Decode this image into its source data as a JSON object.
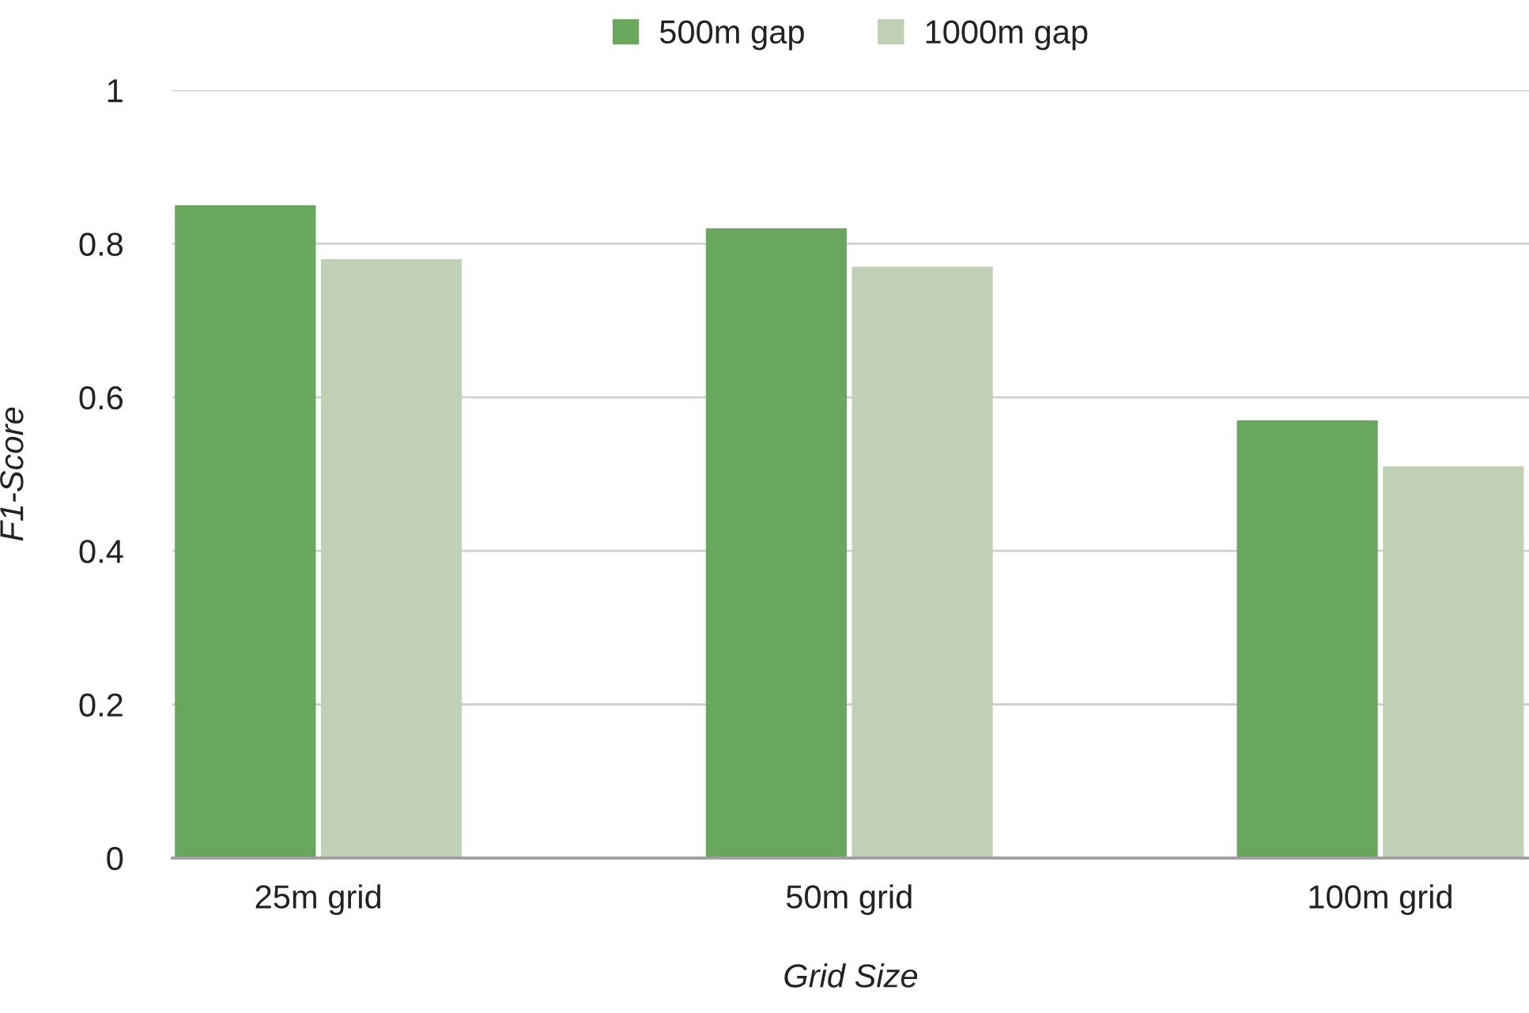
{
  "chart_data": {
    "type": "bar",
    "xlabel": "Grid Size",
    "ylabel": "F1-Score",
    "categories": [
      "25m grid",
      "50m grid",
      "100m grid"
    ],
    "series": [
      {
        "name": "500m gap",
        "color": "#6aa75e",
        "values": [
          0.85,
          0.82,
          0.57
        ]
      },
      {
        "name": "1000m gap",
        "color": "#bfd0b5",
        "values": [
          0.78,
          0.77,
          0.51
        ]
      }
    ],
    "ylim": [
      0,
      1
    ],
    "yticks": [
      0,
      0.2,
      0.4,
      0.6,
      0.8,
      1
    ],
    "grid": "y",
    "legend": "top"
  }
}
